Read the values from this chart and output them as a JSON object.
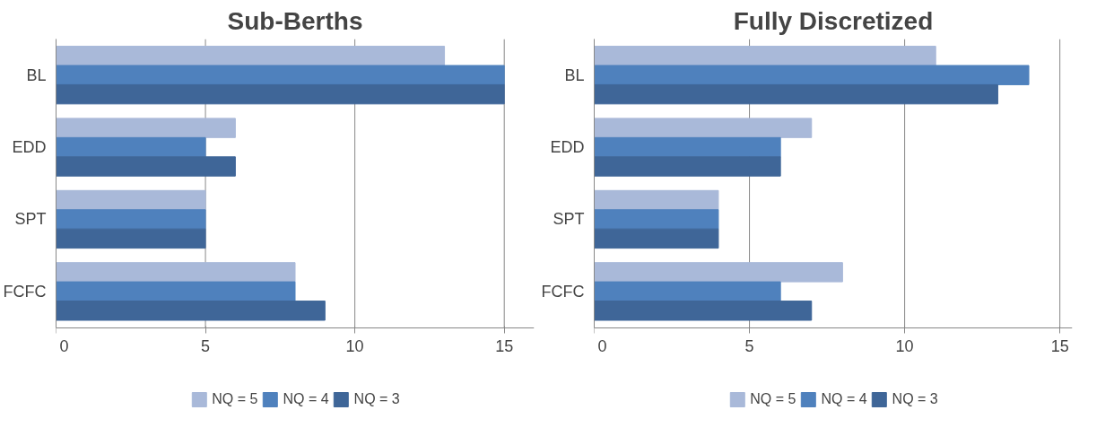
{
  "chart_data": [
    {
      "type": "bar",
      "orientation": "horizontal",
      "title": "Sub-Berths",
      "categories": [
        "BL",
        "EDD",
        "SPT",
        "FCFC"
      ],
      "series": [
        {
          "name": "NQ = 5",
          "color": "#a9b9d9",
          "values": [
            13,
            6,
            5,
            8
          ]
        },
        {
          "name": "NQ = 4",
          "color": "#4f81bd",
          "values": [
            15,
            5,
            5,
            8
          ]
        },
        {
          "name": "NQ = 3",
          "color": "#3f6698",
          "values": [
            15,
            6,
            5,
            9
          ]
        }
      ],
      "xlim": [
        0,
        16
      ],
      "xticks": [
        0,
        5,
        10,
        15
      ],
      "grid": "x",
      "legend": "bottom"
    },
    {
      "type": "bar",
      "orientation": "horizontal",
      "title": "Fully Discretized",
      "categories": [
        "BL",
        "EDD",
        "SPT",
        "FCFC"
      ],
      "series": [
        {
          "name": "NQ = 5",
          "color": "#a9b9d9",
          "values": [
            11,
            7,
            4,
            8
          ]
        },
        {
          "name": "NQ = 4",
          "color": "#4f81bd",
          "values": [
            14,
            6,
            4,
            6
          ]
        },
        {
          "name": "NQ = 3",
          "color": "#3f6698",
          "values": [
            13,
            6,
            4,
            7
          ]
        }
      ],
      "xlim": [
        0,
        15.4
      ],
      "xticks": [
        0,
        5,
        10,
        15
      ],
      "grid": "x",
      "legend": "bottom"
    }
  ]
}
